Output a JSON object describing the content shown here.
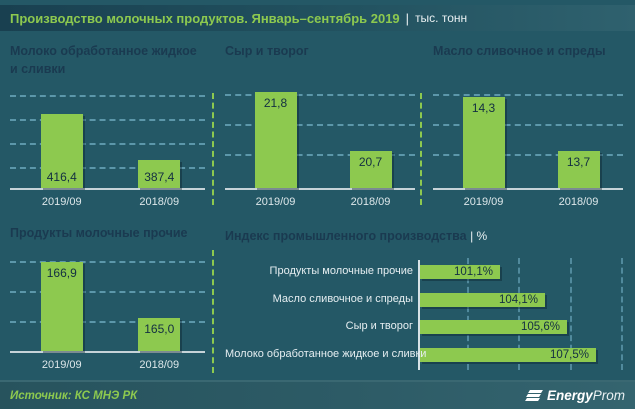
{
  "header": {
    "title": "Производство молочных продуктов. Январь–сентябрь 2019",
    "separator": "|",
    "unit": "тыс. тонн"
  },
  "colors": {
    "background": "#245866",
    "header_bg_left": "#194050",
    "header_bg_right": "#2f616e",
    "accent_green": "#8dc94f",
    "title_dark": "#1a3a50",
    "grid_blue": "#6facc2",
    "axis_light": "#c6d3d8",
    "tick_text": "#dde7ea",
    "value_text": "#132f42"
  },
  "chart_data": [
    {
      "type": "bar",
      "title": "Молоко обработанное жидкое и сливки",
      "title_lines": [
        "Молоко обработанное жидкое",
        "и сливки"
      ],
      "categories": [
        "2019/09",
        "2018/09"
      ],
      "values": [
        416.4,
        387.4
      ],
      "value_labels": [
        "416,4",
        "387,4"
      ],
      "label_position": "bottom",
      "ylim": [
        370,
        430
      ],
      "gridlines": 4
    },
    {
      "type": "bar",
      "title": "Сыр и творог",
      "title_lines": [
        "Сыр и творог"
      ],
      "categories": [
        "2019/09",
        "2018/09"
      ],
      "values": [
        21.8,
        20.7
      ],
      "value_labels": [
        "21,8",
        "20,7"
      ],
      "label_position": "top",
      "ylim": [
        20,
        21.8
      ],
      "gridlines": 3
    },
    {
      "type": "bar",
      "title": "Масло сливочное и спреды",
      "title_lines": [
        "Масло сливочное и спреды"
      ],
      "categories": [
        "2019/09",
        "2018/09"
      ],
      "values": [
        14.3,
        13.7
      ],
      "value_labels": [
        "14,3",
        "13,7"
      ],
      "label_position": "top",
      "ylim": [
        13.3,
        14.35
      ],
      "gridlines": 3
    },
    {
      "type": "bar",
      "title": "Продукты молочные прочие",
      "title_lines": [
        "Продукты молочные прочие"
      ],
      "categories": [
        "2019/09",
        "2018/09"
      ],
      "values": [
        166.9,
        165.0
      ],
      "value_labels": [
        "166,9",
        "165,0"
      ],
      "label_position": "top",
      "ylim": [
        163.9,
        167.0
      ],
      "gridlines": 3
    },
    {
      "type": "bar_horizontal",
      "title": "Индекс промышленного производства",
      "title_unit": "| %",
      "categories": [
        "Продукты молочные прочие",
        "Масло сливочное и спреды",
        "Сыр и творог",
        "Молоко обработанное жидкое и сливки"
      ],
      "values": [
        101.1,
        104.1,
        105.6,
        107.5
      ],
      "value_labels": [
        "101,1%",
        "104,1%",
        "105,6%",
        "107,5%"
      ],
      "xlim": [
        95.8,
        109.5
      ],
      "gridlines": 4
    }
  ],
  "footer": {
    "source": "Источник: КС МНЭ РК",
    "logo_icon": "energyprom-bars-icon",
    "logo_bold": "Energy",
    "logo_light": "Prom"
  }
}
